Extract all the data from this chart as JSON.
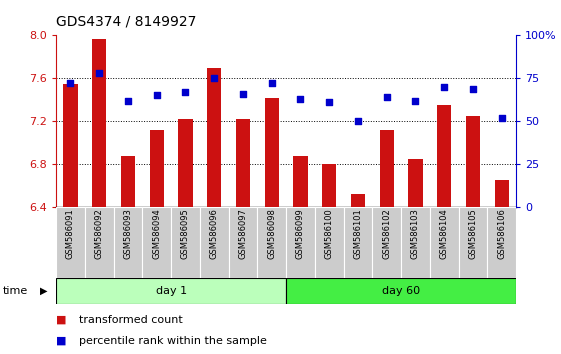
{
  "title": "GDS4374 / 8149927",
  "samples": [
    "GSM586091",
    "GSM586092",
    "GSM586093",
    "GSM586094",
    "GSM586095",
    "GSM586096",
    "GSM586097",
    "GSM586098",
    "GSM586099",
    "GSM586100",
    "GSM586101",
    "GSM586102",
    "GSM586103",
    "GSM586104",
    "GSM586105",
    "GSM586106"
  ],
  "bar_values": [
    7.55,
    7.97,
    6.88,
    7.12,
    7.22,
    7.7,
    7.22,
    7.42,
    6.88,
    6.8,
    6.52,
    7.12,
    6.85,
    7.35,
    7.25,
    6.65
  ],
  "dot_values": [
    72,
    78,
    62,
    65,
    67,
    75,
    66,
    72,
    63,
    61,
    50,
    64,
    62,
    70,
    69,
    52
  ],
  "day1_samples": 8,
  "day60_samples": 8,
  "ylim_left": [
    6.4,
    8.0
  ],
  "ylim_right": [
    0,
    100
  ],
  "yticks_left": [
    6.4,
    6.8,
    7.2,
    7.6,
    8.0
  ],
  "yticks_right": [
    0,
    25,
    50,
    75,
    100
  ],
  "ytick_labels_right": [
    "0",
    "25",
    "50",
    "75",
    "100%"
  ],
  "bar_color": "#cc1111",
  "dot_color": "#0000cc",
  "bar_bottom": 6.4,
  "day1_color": "#bbffbb",
  "day60_color": "#44ee44",
  "time_label": "time",
  "day1_label": "day 1",
  "day60_label": "day 60",
  "legend_bar_label": "transformed count",
  "legend_dot_label": "percentile rank within the sample",
  "title_fontsize": 10,
  "axis_fontsize": 8,
  "label_fontsize": 8,
  "tick_label_fontsize": 6
}
